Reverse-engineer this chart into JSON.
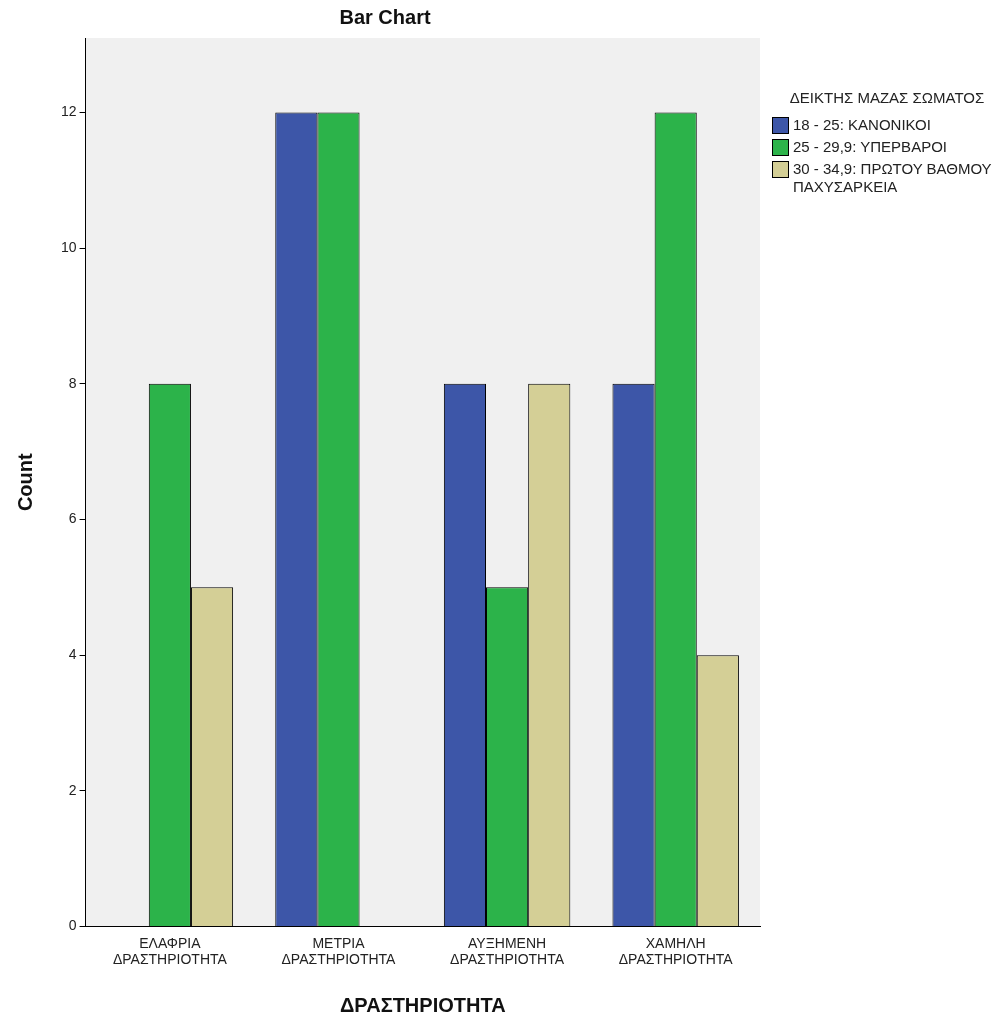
{
  "chart_data": {
    "type": "bar",
    "title": "Bar Chart",
    "xlabel": "ΔΡΑΣΤΗΡΙΟΤΗΤΑ",
    "ylabel": "Count",
    "legend_title": "ΔΕΙΚΤΗΣ ΜΑΖΑΣ ΣΩΜΑΤΟΣ",
    "legend": "right",
    "categories": [
      "ΕΛΑΦΡΙΑ ΔΡΑΣΤΗΡΙΟΤΗΤΑ",
      "ΜΕΤΡΙΑ ΔΡΑΣΤΗΡΙΟΤΗΤΑ",
      "ΑΥΞΗΜΕΝΗ ΔΡΑΣΤΗΡΙΟΤΗΤΑ",
      "ΧΑΜΗΛΗ ΔΡΑΣΤΗΡΙΟΤΗΤΑ"
    ],
    "series": [
      {
        "name": "18 - 25: ΚΑΝΟΝΙΚΟΙ",
        "color": "#3d56a8",
        "values": [
          0,
          12,
          8,
          8
        ]
      },
      {
        "name": "25 - 29,9: ΥΠΕΡΒΑΡΟΙ",
        "color": "#2cb34a",
        "values": [
          8,
          12,
          5,
          12
        ]
      },
      {
        "name": "30 - 34,9: ΠΡΩΤΟΥ ΒΑΘΜΟΥ ΠΑΧΥΣΑΡΚΕΙΑ",
        "color": "#d4cf96",
        "values": [
          5,
          0,
          8,
          4
        ]
      }
    ],
    "ylim": [
      0,
      13.1
    ],
    "yticks": [
      0,
      2,
      4,
      6,
      8,
      10,
      12
    ],
    "grid": false
  }
}
